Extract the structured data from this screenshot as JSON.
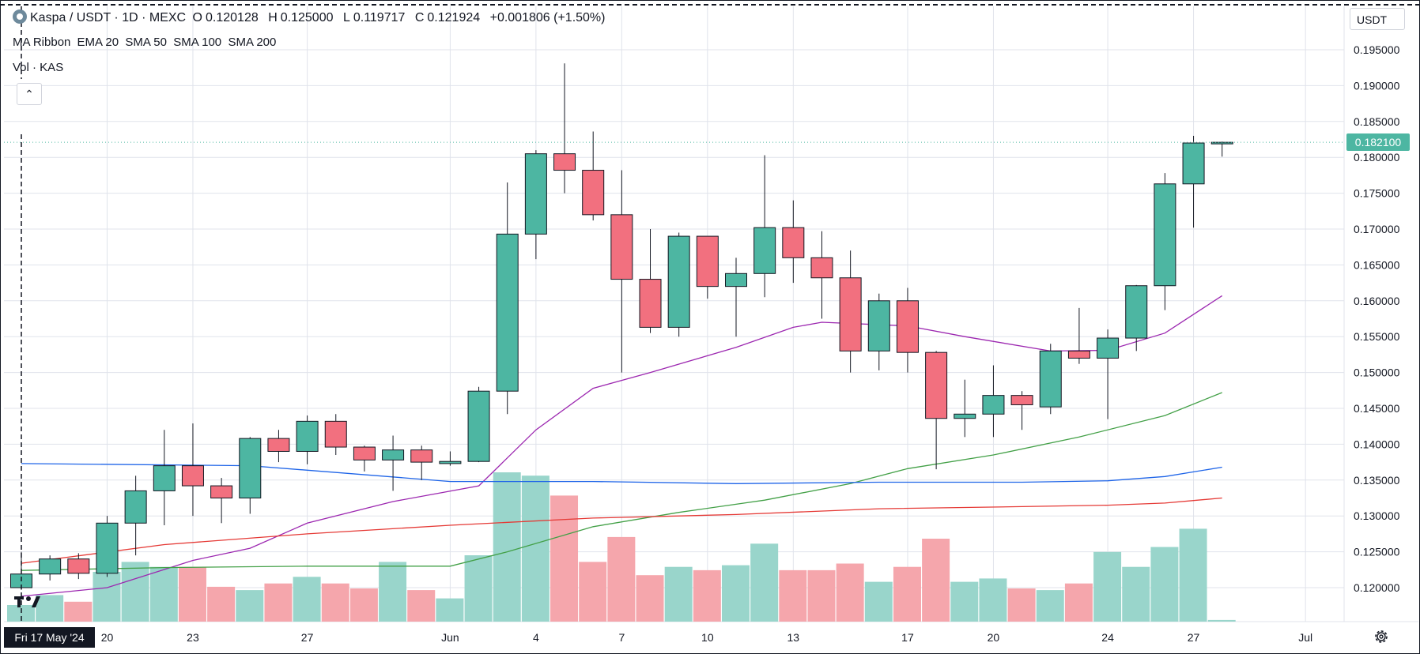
{
  "legend": {
    "symbol": "Kaspa / USDT · 1D · MEXC",
    "open_label": "O",
    "open": "0.120128",
    "high_label": "H",
    "high": "0.125000",
    "low_label": "L",
    "low": "0.119717",
    "close_label": "C",
    "close": "0.121924",
    "change": "+0.001806 (+1.50%)",
    "ma_title": "MA Ribbon",
    "ma_params": "EMA 20  SMA 50  SMA 100  SMA 200",
    "vol_title": "Vol · KAS"
  },
  "toolbar": {
    "currency": "USDT",
    "collapse_icon": "chevron-up-icon",
    "settings_icon": "gear-icon"
  },
  "current_price": "0.182100",
  "crosshair_date": "Fri 17 May '24",
  "colors": {
    "up": "#4db6a2",
    "down": "#f2707f",
    "vol_up": "#99d5cb",
    "vol_down": "#f5a6ac",
    "ema20": "#9c27b0",
    "sma50": "#43a047",
    "sma100": "#1e64e8",
    "sma200": "#e53935"
  },
  "chart_data": {
    "type": "candlestick",
    "title": "Kaspa / USDT · 1D · MEXC",
    "ylim": [
      0.115,
      0.199
    ],
    "y_ticks": [
      "0.195000",
      "0.190000",
      "0.185000",
      "0.180000",
      "0.175000",
      "0.170000",
      "0.165000",
      "0.160000",
      "0.155000",
      "0.150000",
      "0.145000",
      "0.140000",
      "0.135000",
      "0.130000",
      "0.125000",
      "0.120000"
    ],
    "x_ticks": [
      {
        "label": "20",
        "index": 3
      },
      {
        "label": "23",
        "index": 6
      },
      {
        "label": "27",
        "index": 10
      },
      {
        "label": "Jun",
        "index": 15
      },
      {
        "label": "4",
        "index": 18
      },
      {
        "label": "7",
        "index": 21
      },
      {
        "label": "10",
        "index": 24
      },
      {
        "label": "13",
        "index": 27
      },
      {
        "label": "17",
        "index": 31
      },
      {
        "label": "20",
        "index": 34
      },
      {
        "label": "24",
        "index": 38
      },
      {
        "label": "27",
        "index": 41
      },
      {
        "label": "Jul",
        "index": 45
      }
    ],
    "candles": [
      {
        "o": 0.12,
        "h": 0.125,
        "l": 0.1197,
        "c": 0.1219,
        "v": 0.1
      },
      {
        "o": 0.1219,
        "h": 0.1245,
        "l": 0.121,
        "c": 0.124,
        "v": 0.16
      },
      {
        "o": 0.124,
        "h": 0.1248,
        "l": 0.1212,
        "c": 0.122,
        "v": 0.12
      },
      {
        "o": 0.122,
        "h": 0.13,
        "l": 0.1215,
        "c": 0.129,
        "v": 0.3
      },
      {
        "o": 0.129,
        "h": 0.1356,
        "l": 0.1245,
        "c": 0.1335,
        "v": 0.36
      },
      {
        "o": 0.1335,
        "h": 0.142,
        "l": 0.1287,
        "c": 0.137,
        "v": 0.33
      },
      {
        "o": 0.137,
        "h": 0.1429,
        "l": 0.13,
        "c": 0.1342,
        "v": 0.33
      },
      {
        "o": 0.1342,
        "h": 0.1353,
        "l": 0.129,
        "c": 0.1325,
        "v": 0.21
      },
      {
        "o": 0.1325,
        "h": 0.141,
        "l": 0.1303,
        "c": 0.1408,
        "v": 0.19
      },
      {
        "o": 0.1408,
        "h": 0.142,
        "l": 0.1375,
        "c": 0.139,
        "v": 0.23
      },
      {
        "o": 0.139,
        "h": 0.144,
        "l": 0.1372,
        "c": 0.1432,
        "v": 0.27
      },
      {
        "o": 0.1432,
        "h": 0.1442,
        "l": 0.1385,
        "c": 0.1396,
        "v": 0.23
      },
      {
        "o": 0.1396,
        "h": 0.1398,
        "l": 0.1362,
        "c": 0.1378,
        "v": 0.2
      },
      {
        "o": 0.1378,
        "h": 0.1412,
        "l": 0.1335,
        "c": 0.1392,
        "v": 0.36
      },
      {
        "o": 0.1392,
        "h": 0.1398,
        "l": 0.135,
        "c": 0.1375,
        "v": 0.19
      },
      {
        "o": 0.1373,
        "h": 0.139,
        "l": 0.137,
        "c": 0.1376,
        "v": 0.14
      },
      {
        "o": 0.1376,
        "h": 0.148,
        "l": 0.1375,
        "c": 0.1474,
        "v": 0.4
      },
      {
        "o": 0.1474,
        "h": 0.1765,
        "l": 0.1442,
        "c": 0.1693,
        "v": 0.9
      },
      {
        "o": 0.1693,
        "h": 0.181,
        "l": 0.1658,
        "c": 0.1805,
        "v": 0.88
      },
      {
        "o": 0.1805,
        "h": 0.1931,
        "l": 0.175,
        "c": 0.1782,
        "v": 0.76
      },
      {
        "o": 0.1782,
        "h": 0.1836,
        "l": 0.1712,
        "c": 0.172,
        "v": 0.36
      },
      {
        "o": 0.172,
        "h": 0.1782,
        "l": 0.15,
        "c": 0.163,
        "v": 0.51
      },
      {
        "o": 0.163,
        "h": 0.17,
        "l": 0.1555,
        "c": 0.1563,
        "v": 0.28
      },
      {
        "o": 0.1563,
        "h": 0.1695,
        "l": 0.155,
        "c": 0.169,
        "v": 0.33
      },
      {
        "o": 0.169,
        "h": 0.1688,
        "l": 0.1603,
        "c": 0.162,
        "v": 0.31
      },
      {
        "o": 0.162,
        "h": 0.166,
        "l": 0.155,
        "c": 0.1638,
        "v": 0.34
      },
      {
        "o": 0.1638,
        "h": 0.1803,
        "l": 0.1605,
        "c": 0.1702,
        "v": 0.47
      },
      {
        "o": 0.1702,
        "h": 0.174,
        "l": 0.1625,
        "c": 0.166,
        "v": 0.31
      },
      {
        "o": 0.166,
        "h": 0.1697,
        "l": 0.1575,
        "c": 0.1632,
        "v": 0.31
      },
      {
        "o": 0.1632,
        "h": 0.167,
        "l": 0.15,
        "c": 0.153,
        "v": 0.35
      },
      {
        "o": 0.153,
        "h": 0.161,
        "l": 0.1503,
        "c": 0.16,
        "v": 0.24
      },
      {
        "o": 0.16,
        "h": 0.1618,
        "l": 0.15,
        "c": 0.1528,
        "v": 0.33
      },
      {
        "o": 0.1528,
        "h": 0.153,
        "l": 0.1365,
        "c": 0.1436,
        "v": 0.5
      },
      {
        "o": 0.1436,
        "h": 0.149,
        "l": 0.141,
        "c": 0.1442,
        "v": 0.24
      },
      {
        "o": 0.1442,
        "h": 0.151,
        "l": 0.141,
        "c": 0.1468,
        "v": 0.26
      },
      {
        "o": 0.1468,
        "h": 0.1474,
        "l": 0.142,
        "c": 0.1455,
        "v": 0.2
      },
      {
        "o": 0.1452,
        "h": 0.154,
        "l": 0.1442,
        "c": 0.153,
        "v": 0.19
      },
      {
        "o": 0.153,
        "h": 0.159,
        "l": 0.1512,
        "c": 0.152,
        "v": 0.23
      },
      {
        "o": 0.152,
        "h": 0.156,
        "l": 0.1435,
        "c": 0.1548,
        "v": 0.42
      },
      {
        "o": 0.1548,
        "h": 0.1622,
        "l": 0.153,
        "c": 0.1621,
        "v": 0.33
      },
      {
        "o": 0.1621,
        "h": 0.1778,
        "l": 0.1587,
        "c": 0.1763,
        "v": 0.45
      },
      {
        "o": 0.1763,
        "h": 0.183,
        "l": 0.1702,
        "c": 0.182,
        "v": 0.56
      },
      {
        "o": 0.182,
        "h": 0.1822,
        "l": 0.1801,
        "c": 0.1821,
        "v": 0.01
      }
    ],
    "ma_lines": [
      {
        "name": "EMA 20",
        "color": "#9c27b0",
        "points": [
          [
            0,
            0.1188
          ],
          [
            3,
            0.12
          ],
          [
            6,
            0.1238
          ],
          [
            8,
            0.1255
          ],
          [
            10,
            0.129
          ],
          [
            13,
            0.132
          ],
          [
            16,
            0.1342
          ],
          [
            18,
            0.142
          ],
          [
            20,
            0.1478
          ],
          [
            22,
            0.15
          ],
          [
            25,
            0.1535
          ],
          [
            27,
            0.1563
          ],
          [
            28,
            0.157
          ],
          [
            31,
            0.1565
          ],
          [
            33,
            0.155
          ],
          [
            36,
            0.153
          ],
          [
            38,
            0.1531
          ],
          [
            40,
            0.1555
          ],
          [
            42,
            0.1607
          ]
        ]
      },
      {
        "name": "SMA 50",
        "color": "#43a047",
        "points": [
          [
            0,
            0.1224
          ],
          [
            5,
            0.1228
          ],
          [
            10,
            0.123
          ],
          [
            15,
            0.123
          ],
          [
            17,
            0.125
          ],
          [
            20,
            0.1285
          ],
          [
            23,
            0.1305
          ],
          [
            26,
            0.1322
          ],
          [
            29,
            0.1345
          ],
          [
            31,
            0.1366
          ],
          [
            34,
            0.1385
          ],
          [
            37,
            0.141
          ],
          [
            40,
            0.144
          ],
          [
            42,
            0.1472
          ]
        ]
      },
      {
        "name": "SMA 100",
        "color": "#1e64e8",
        "points": [
          [
            0,
            0.1373
          ],
          [
            8,
            0.137
          ],
          [
            15,
            0.1348
          ],
          [
            20,
            0.1348
          ],
          [
            25,
            0.1345
          ],
          [
            30,
            0.1347
          ],
          [
            35,
            0.1347
          ],
          [
            38,
            0.1349
          ],
          [
            40,
            0.1355
          ],
          [
            42,
            0.1368
          ]
        ]
      },
      {
        "name": "SMA 200",
        "color": "#e53935",
        "points": [
          [
            0,
            0.1234
          ],
          [
            5,
            0.126
          ],
          [
            10,
            0.1275
          ],
          [
            15,
            0.1287
          ],
          [
            20,
            0.1297
          ],
          [
            25,
            0.1302
          ],
          [
            30,
            0.131
          ],
          [
            35,
            0.1313
          ],
          [
            38,
            0.1315
          ],
          [
            40,
            0.1318
          ],
          [
            42,
            0.1325
          ]
        ]
      }
    ]
  }
}
